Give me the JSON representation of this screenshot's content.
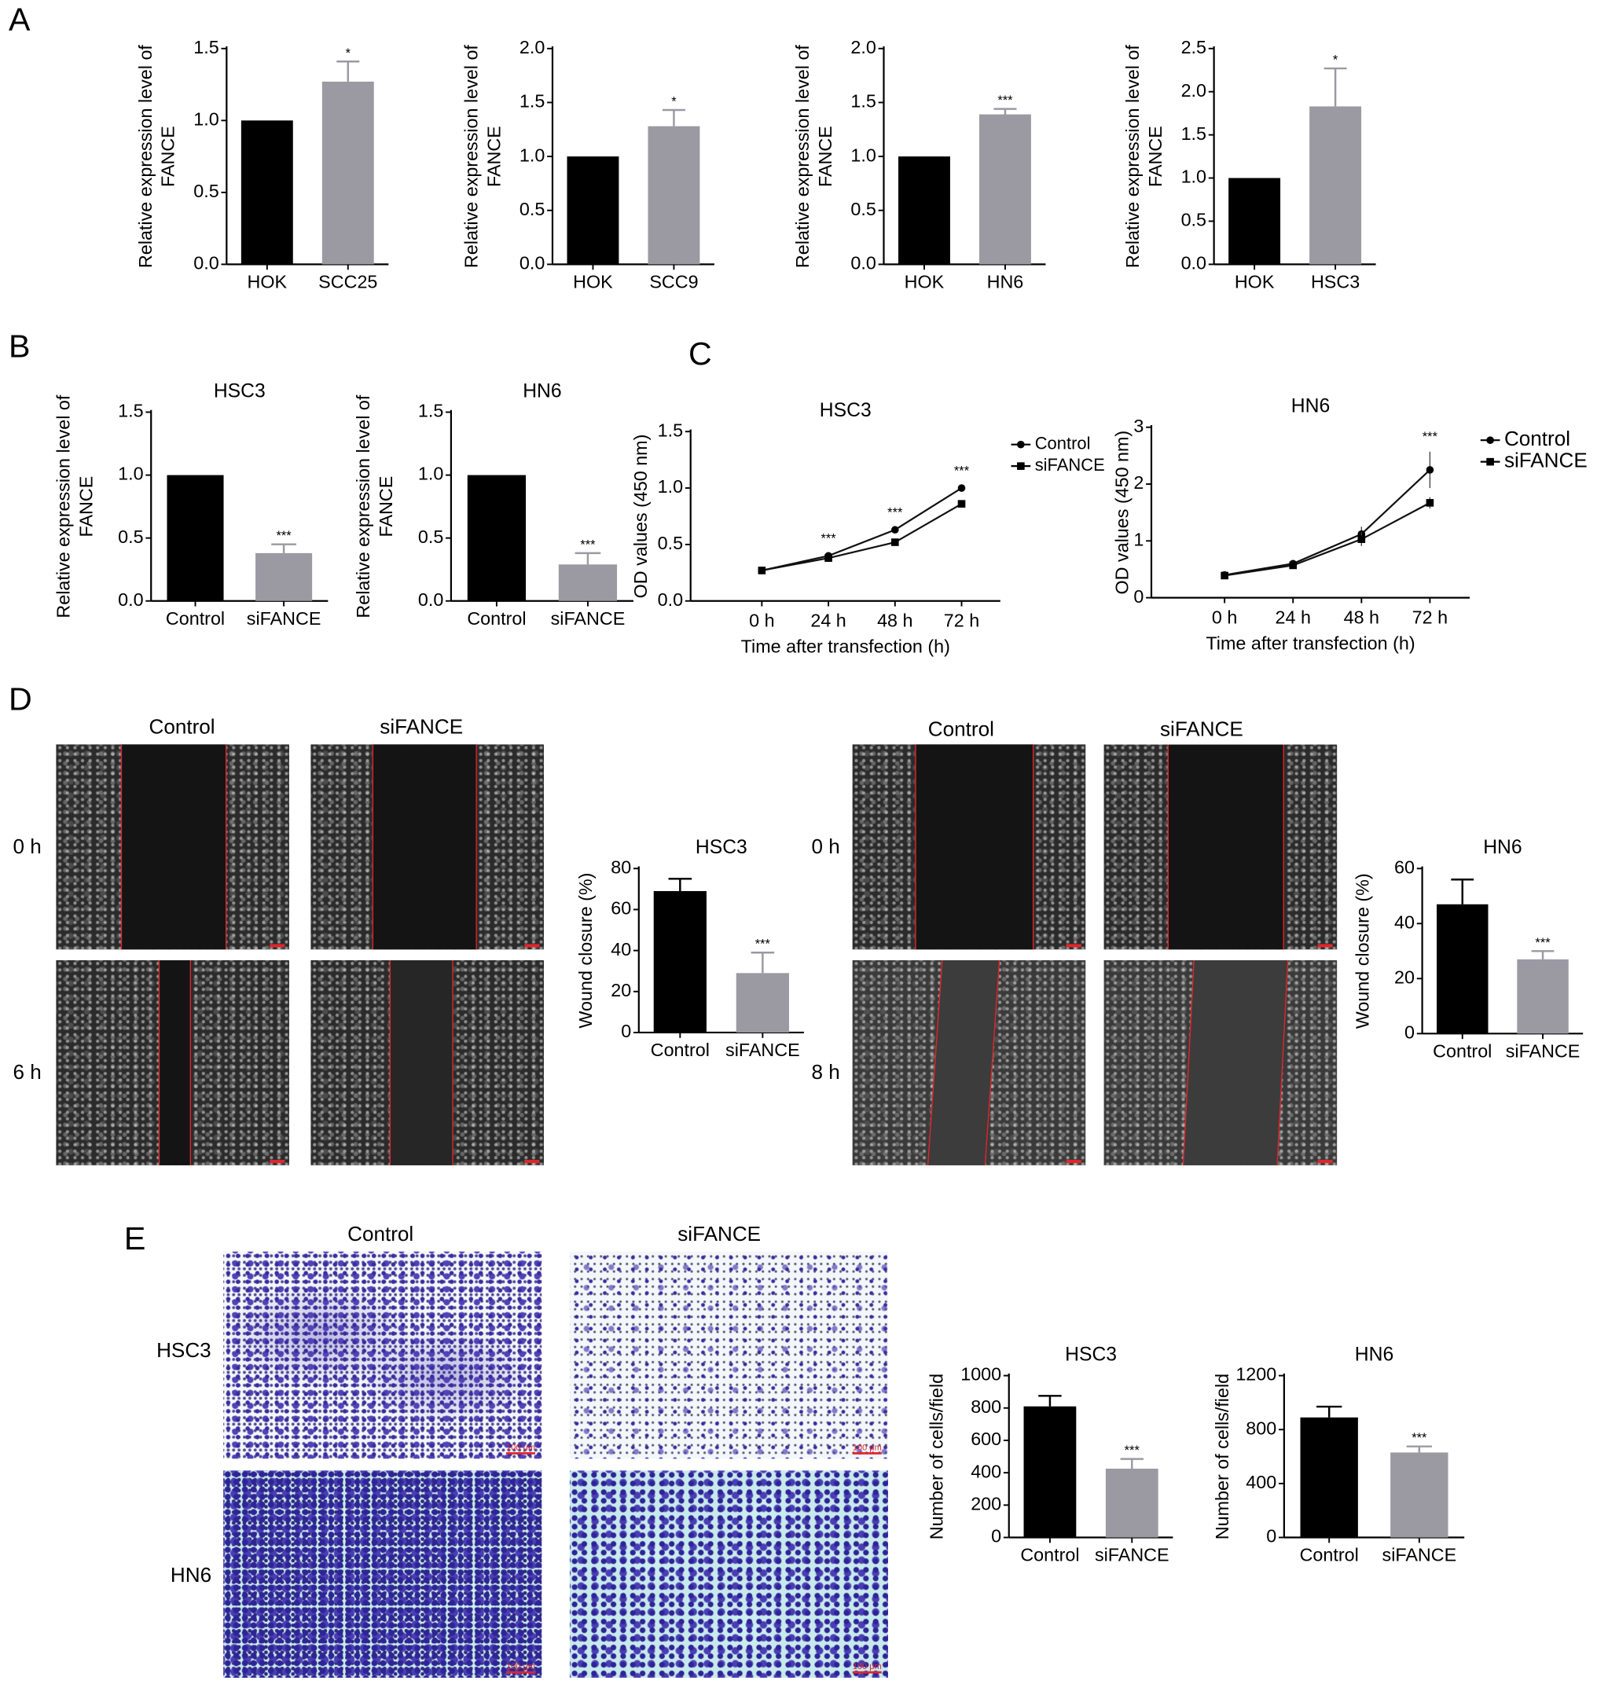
{
  "panels": {
    "A": "A",
    "B": "B",
    "C": "C",
    "D": "D",
    "E": "E"
  },
  "colors": {
    "control": "#000000",
    "treatment": "#9b9aa3",
    "wound_line": "#e0262a",
    "stain": "#3b2c9e"
  },
  "panel_d": {
    "column_headers": [
      "Control",
      "siFANCE",
      "Control",
      "siFANCE"
    ],
    "row_labels": [
      "0 h",
      "6 h",
      "0 h",
      "8 h"
    ]
  },
  "panel_e": {
    "column_headers": [
      "Control",
      "siFANCE"
    ],
    "row_labels": [
      "HSC3",
      "HN6"
    ],
    "scale_bar": "100 μm"
  },
  "chart_data": [
    {
      "type": "bar",
      "title": "",
      "ylabel": [
        "Relative expression level of",
        "FANCE"
      ],
      "categories": [
        "HOK",
        "SCC25"
      ],
      "values": [
        1.0,
        1.27
      ],
      "errors": [
        0,
        0.14
      ],
      "significance": [
        "",
        "*"
      ],
      "yticks": [
        "0.0",
        "0.5",
        "1.0",
        "1.5"
      ],
      "ylim": [
        0,
        1.5
      ]
    },
    {
      "type": "bar",
      "title": "",
      "ylabel": [
        "Relative expression level of",
        "FANCE"
      ],
      "categories": [
        "HOK",
        "SCC9"
      ],
      "values": [
        1.0,
        1.28
      ],
      "errors": [
        0,
        0.15
      ],
      "significance": [
        "",
        "*"
      ],
      "yticks": [
        "0.0",
        "0.5",
        "1.0",
        "1.5",
        "2.0"
      ],
      "ylim": [
        0,
        2.0
      ]
    },
    {
      "type": "bar",
      "title": "",
      "ylabel": [
        "Relative expression level of",
        "FANCE"
      ],
      "categories": [
        "HOK",
        "HN6"
      ],
      "values": [
        1.0,
        1.39
      ],
      "errors": [
        0,
        0.05
      ],
      "significance": [
        "",
        "***"
      ],
      "yticks": [
        "0.0",
        "0.5",
        "1.0",
        "1.5",
        "2.0"
      ],
      "ylim": [
        0,
        2.0
      ]
    },
    {
      "type": "bar",
      "title": "",
      "ylabel": [
        "Relative expression level of",
        "FANCE"
      ],
      "categories": [
        "HOK",
        "HSC3"
      ],
      "values": [
        1.0,
        1.83
      ],
      "errors": [
        0,
        0.44
      ],
      "significance": [
        "",
        "*"
      ],
      "yticks": [
        "0.0",
        "0.5",
        "1.0",
        "1.5",
        "2.0",
        "2.5"
      ],
      "ylim": [
        0,
        2.5
      ]
    },
    {
      "type": "bar",
      "title": "HSC3",
      "ylabel": [
        "Relative expression level of",
        "FANCE"
      ],
      "categories": [
        "Control",
        "siFANCE"
      ],
      "values": [
        1.0,
        0.38
      ],
      "errors": [
        0,
        0.07
      ],
      "significance": [
        "",
        "***"
      ],
      "yticks": [
        "0.0",
        "0.5",
        "1.0",
        "1.5"
      ],
      "ylim": [
        0,
        1.5
      ]
    },
    {
      "type": "bar",
      "title": "HN6",
      "ylabel": [
        "Relative expression level of",
        "FANCE"
      ],
      "categories": [
        "Control",
        "siFANCE"
      ],
      "values": [
        1.0,
        0.29
      ],
      "errors": [
        0,
        0.09
      ],
      "significance": [
        "",
        "***"
      ],
      "yticks": [
        "0.0",
        "0.5",
        "1.0",
        "1.5"
      ],
      "ylim": [
        0,
        1.5
      ]
    },
    {
      "type": "line",
      "title": "HSC3",
      "ylabel": [
        "OD values (450 nm)"
      ],
      "xlabel": "Time after transfection (h)",
      "categories": [
        "0 h",
        "24 h",
        "48 h",
        "72 h"
      ],
      "yticks": [
        "0.0",
        "0.5",
        "1.0",
        "1.5"
      ],
      "ylim": [
        0,
        1.5
      ],
      "legend": "right",
      "series": [
        {
          "name": "Control",
          "marker": "circle",
          "values": [
            0.27,
            0.4,
            0.63,
            1.0
          ],
          "errors": [
            0.01,
            0.02,
            0.02,
            0.02
          ]
        },
        {
          "name": "siFANCE",
          "marker": "square",
          "values": [
            0.27,
            0.38,
            0.52,
            0.86
          ],
          "errors": [
            0.01,
            0.02,
            0.02,
            0.03
          ]
        }
      ],
      "significance": [
        "",
        "***",
        "***",
        "***"
      ]
    },
    {
      "type": "line",
      "title": "HN6",
      "ylabel": [
        "OD values (450 nm)"
      ],
      "xlabel": "Time after transfection (h)",
      "categories": [
        "0 h",
        "24 h",
        "48 h",
        "72 h"
      ],
      "yticks": [
        "0",
        "1",
        "2",
        "3"
      ],
      "ylim": [
        0,
        3
      ],
      "legend": "right",
      "series": [
        {
          "name": "Control",
          "marker": "circle",
          "values": [
            0.4,
            0.6,
            1.12,
            2.25
          ],
          "errors": [
            0.03,
            0.04,
            0.13,
            0.32
          ]
        },
        {
          "name": "siFANCE",
          "marker": "square",
          "values": [
            0.39,
            0.57,
            1.03,
            1.67
          ],
          "errors": [
            0.03,
            0.03,
            0.12,
            0.1
          ]
        }
      ],
      "significance": [
        "",
        "",
        "",
        "***"
      ]
    },
    {
      "type": "bar",
      "title": "HSC3",
      "ylabel": [
        "Wound closure (%)"
      ],
      "categories": [
        "Control",
        "siFANCE"
      ],
      "values": [
        69,
        29
      ],
      "errors": [
        6,
        10
      ],
      "significance": [
        "",
        "***"
      ],
      "yticks": [
        "0",
        "20",
        "40",
        "60",
        "80"
      ],
      "ylim": [
        0,
        80
      ]
    },
    {
      "type": "bar",
      "title": "HN6",
      "ylabel": [
        "Wound closure (%)"
      ],
      "categories": [
        "Control",
        "siFANCE"
      ],
      "values": [
        47,
        27
      ],
      "errors": [
        9,
        3
      ],
      "significance": [
        "",
        "***"
      ],
      "yticks": [
        "0",
        "20",
        "40",
        "60"
      ],
      "ylim": [
        0,
        60
      ]
    },
    {
      "type": "bar",
      "title": "HSC3",
      "ylabel": [
        "Number of cells/field"
      ],
      "categories": [
        "Control",
        "siFANCE"
      ],
      "values": [
        810,
        425
      ],
      "errors": [
        65,
        60
      ],
      "significance": [
        "",
        "***"
      ],
      "yticks": [
        "0",
        "200",
        "400",
        "600",
        "800",
        "1000"
      ],
      "ylim": [
        0,
        1000
      ]
    },
    {
      "type": "bar",
      "title": "HN6",
      "ylabel": [
        "Number of cells/field"
      ],
      "categories": [
        "Control",
        "siFANCE"
      ],
      "values": [
        890,
        630
      ],
      "errors": [
        80,
        45
      ],
      "significance": [
        "",
        "***"
      ],
      "yticks": [
        "0",
        "400",
        "800",
        "1200"
      ],
      "ylim": [
        0,
        1200
      ]
    }
  ]
}
